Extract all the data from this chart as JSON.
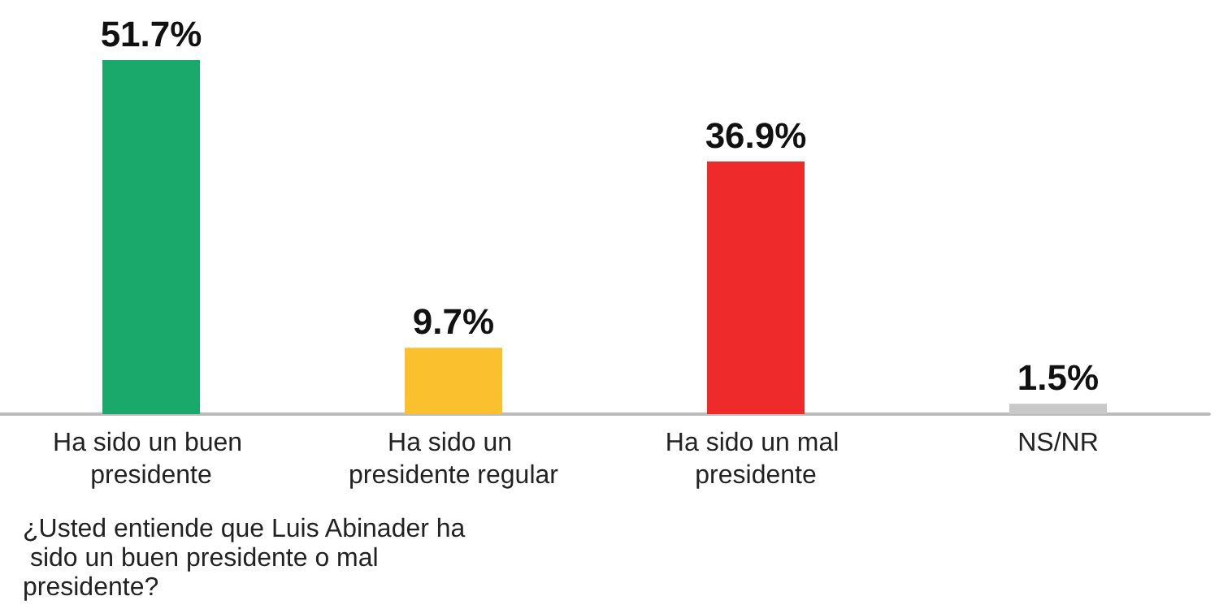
{
  "chart_data": {
    "type": "bar",
    "categories": [
      "Ha sido un buen presidente",
      "Ha sido un presidente regular",
      "Ha sido un mal presidente",
      "NS/NR"
    ],
    "values": [
      51.7,
      9.7,
      36.9,
      1.5
    ],
    "colors": [
      "#1aa86b",
      "#fbc02d",
      "#ee2a2a",
      "#c8c8c8"
    ],
    "value_labels": [
      "51.7%",
      "9.7%",
      "36.9%",
      "1.5%"
    ],
    "annotations": [
      "¿Usted entiende que Luis Abinader ha sido un buen presidente o mal presidente?"
    ]
  }
}
